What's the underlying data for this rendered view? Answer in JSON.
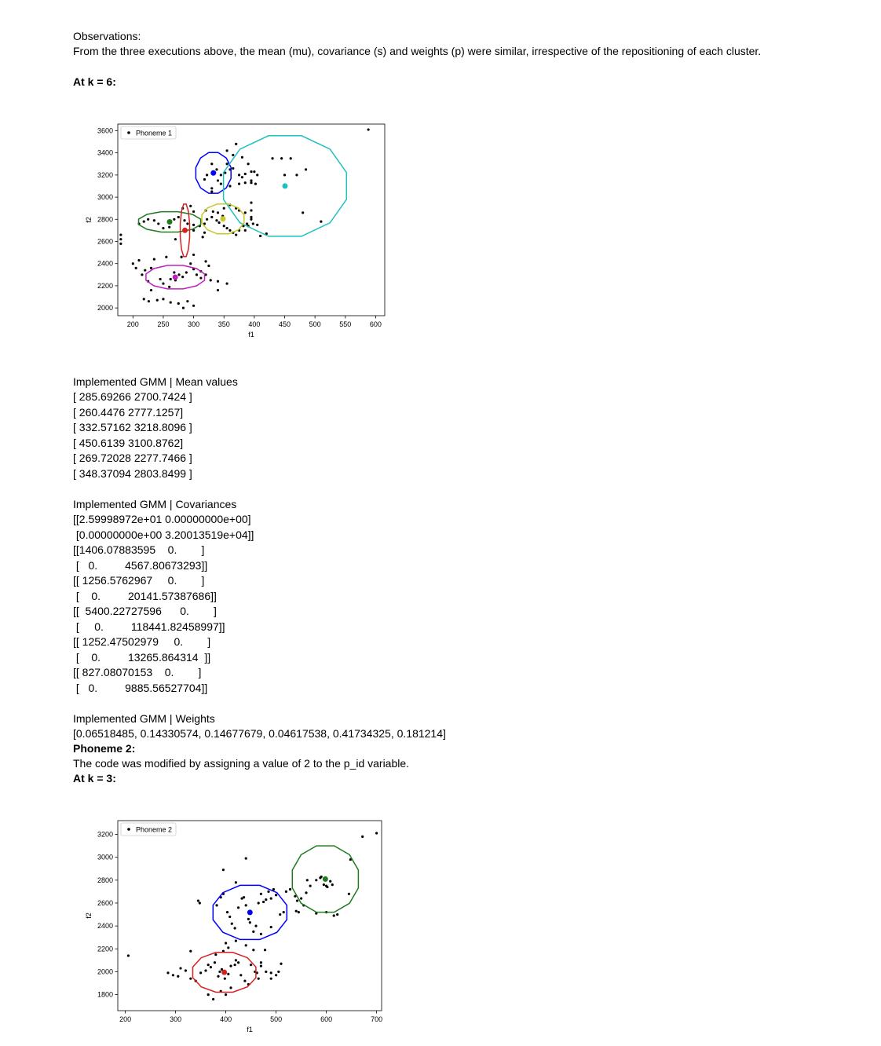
{
  "observations": {
    "heading": "Observations:",
    "text": "From the three executions above, the mean (mu), covariance (s) and weights (p) were similar, irrespective of the repositioning of each cluster."
  },
  "k6_heading": "At k = 6:",
  "chart_data": [
    {
      "type": "scatter",
      "legend": "Phoneme 1",
      "xlabel": "f1",
      "ylabel": "f2",
      "xlim": [
        175,
        615
      ],
      "ylim": [
        1930,
        3660
      ],
      "xticks": [
        200,
        250,
        300,
        350,
        400,
        450,
        500,
        550,
        600
      ],
      "yticks": [
        2000,
        2200,
        2400,
        2600,
        2800,
        3000,
        3200,
        3400,
        3600
      ],
      "clusters": [
        {
          "color": "#0000ff",
          "mean": [
            332.57,
            3218.81
          ],
          "rx": 30,
          "ry": 190
        },
        {
          "color": "#1fbfbf",
          "mean": [
            450.61,
            3100.88
          ],
          "rx": 105,
          "ry": 470
        },
        {
          "color": "#1e7b1e",
          "mean": [
            260.45,
            2777.13
          ],
          "rx": 53,
          "ry": 95
        },
        {
          "color": "#d62020",
          "mean": [
            285.69,
            2700.74
          ],
          "rx": 8,
          "ry": 245
        },
        {
          "color": "#c8c82a",
          "mean": [
            348.37,
            2803.85
          ],
          "rx": 36,
          "ry": 140
        },
        {
          "color": "#c020c0",
          "mean": [
            269.72,
            2277.75
          ],
          "rx": 50,
          "ry": 110
        }
      ],
      "points": [
        [
          180,
          2580
        ],
        [
          180,
          2620
        ],
        [
          180,
          2660
        ],
        [
          200,
          2400
        ],
        [
          205,
          2360
        ],
        [
          210,
          2430
        ],
        [
          215,
          2300
        ],
        [
          220,
          2340
        ],
        [
          225,
          2240
        ],
        [
          230,
          2160
        ],
        [
          218,
          2080
        ],
        [
          226,
          2060
        ],
        [
          240,
          2070
        ],
        [
          250,
          2080
        ],
        [
          262,
          2050
        ],
        [
          275,
          2040
        ],
        [
          290,
          2060
        ],
        [
          300,
          2020
        ],
        [
          283,
          2000
        ],
        [
          262,
          2260
        ],
        [
          270,
          2250
        ],
        [
          282,
          2280
        ],
        [
          276,
          2300
        ],
        [
          268,
          2320
        ],
        [
          288,
          2320
        ],
        [
          300,
          2350
        ],
        [
          312,
          2330
        ],
        [
          320,
          2300
        ],
        [
          328,
          2250
        ],
        [
          340,
          2240
        ],
        [
          355,
          2220
        ],
        [
          312,
          2270
        ],
        [
          305,
          2300
        ],
        [
          295,
          2400
        ],
        [
          320,
          2420
        ],
        [
          325,
          2380
        ],
        [
          300,
          2480
        ],
        [
          280,
          2460
        ],
        [
          255,
          2460
        ],
        [
          235,
          2440
        ],
        [
          230,
          2360
        ],
        [
          245,
          2260
        ],
        [
          250,
          2220
        ],
        [
          260,
          2190
        ],
        [
          210,
          2760
        ],
        [
          218,
          2780
        ],
        [
          225,
          2800
        ],
        [
          235,
          2790
        ],
        [
          242,
          2760
        ],
        [
          250,
          2720
        ],
        [
          260,
          2730
        ],
        [
          268,
          2800
        ],
        [
          275,
          2820
        ],
        [
          285,
          2790
        ],
        [
          290,
          2760
        ],
        [
          300,
          2750
        ],
        [
          310,
          2740
        ],
        [
          318,
          2760
        ],
        [
          322,
          2800
        ],
        [
          330,
          2820
        ],
        [
          338,
          2790
        ],
        [
          342,
          2770
        ],
        [
          350,
          2740
        ],
        [
          355,
          2720
        ],
        [
          360,
          2700
        ],
        [
          365,
          2680
        ],
        [
          370,
          2660
        ],
        [
          375,
          2700
        ],
        [
          382,
          2740
        ],
        [
          388,
          2760
        ],
        [
          395,
          2800
        ],
        [
          395,
          2820
        ],
        [
          398,
          2760
        ],
        [
          405,
          2750
        ],
        [
          282,
          2900
        ],
        [
          295,
          2920
        ],
        [
          300,
          2870
        ],
        [
          320,
          2880
        ],
        [
          332,
          2870
        ],
        [
          340,
          2860
        ],
        [
          348,
          2830
        ],
        [
          350,
          2900
        ],
        [
          360,
          2930
        ],
        [
          370,
          2900
        ],
        [
          375,
          2880
        ],
        [
          385,
          2860
        ],
        [
          395,
          2880
        ],
        [
          395,
          2950
        ],
        [
          390,
          2740
        ],
        [
          385,
          2700
        ],
        [
          315,
          2640
        ],
        [
          270,
          2620
        ],
        [
          300,
          2700
        ],
        [
          318,
          2680
        ],
        [
          340,
          3150
        ],
        [
          345,
          3200
        ],
        [
          352,
          3220
        ],
        [
          360,
          3250
        ],
        [
          365,
          3260
        ],
        [
          375,
          3200
        ],
        [
          380,
          3180
        ],
        [
          385,
          3210
        ],
        [
          395,
          3230
        ],
        [
          400,
          3230
        ],
        [
          405,
          3200
        ],
        [
          402,
          3120
        ],
        [
          395,
          3150
        ],
        [
          385,
          3130
        ],
        [
          375,
          3120
        ],
        [
          360,
          3100
        ],
        [
          345,
          3120
        ],
        [
          330,
          3080
        ],
        [
          338,
          3250
        ],
        [
          355,
          3300
        ],
        [
          365,
          3380
        ],
        [
          380,
          3360
        ],
        [
          390,
          3300
        ],
        [
          322,
          3200
        ],
        [
          318,
          3160
        ],
        [
          330,
          3300
        ],
        [
          430,
          3350
        ],
        [
          445,
          3350
        ],
        [
          460,
          3350
        ],
        [
          450,
          3200
        ],
        [
          485,
          3250
        ],
        [
          470,
          3200
        ],
        [
          395,
          3130
        ],
        [
          330,
          3050
        ],
        [
          410,
          2650
        ],
        [
          420,
          2670
        ],
        [
          480,
          2860
        ],
        [
          510,
          2780
        ],
        [
          588,
          3610
        ],
        [
          370,
          3480
        ],
        [
          355,
          3420
        ],
        [
          340,
          2160
        ]
      ]
    },
    {
      "type": "scatter",
      "legend": "Phoneme 2",
      "xlabel": "f1",
      "ylabel": "f2",
      "xlim": [
        185,
        710
      ],
      "ylim": [
        1660,
        3320
      ],
      "xticks": [
        200,
        300,
        400,
        500,
        600,
        700
      ],
      "yticks": [
        1800,
        2000,
        2200,
        2400,
        2600,
        2800,
        3000,
        3200
      ],
      "clusters": [
        {
          "color": "#d62020",
          "mean": [
            397,
            1995
          ],
          "rx": 65,
          "ry": 180
        },
        {
          "color": "#0000ff",
          "mean": [
            448,
            2518
          ],
          "rx": 76,
          "ry": 245
        },
        {
          "color": "#1e7b1e",
          "mean": [
            598,
            2810
          ],
          "rx": 68,
          "ry": 300
        }
      ],
      "points": [
        [
          206,
          2140
        ],
        [
          285,
          1990
        ],
        [
          295,
          1970
        ],
        [
          305,
          1960
        ],
        [
          310,
          2030
        ],
        [
          320,
          2010
        ],
        [
          330,
          1940
        ],
        [
          340,
          1920
        ],
        [
          350,
          1990
        ],
        [
          360,
          2010
        ],
        [
          365,
          2060
        ],
        [
          370,
          2040
        ],
        [
          378,
          2080
        ],
        [
          385,
          1960
        ],
        [
          388,
          2000
        ],
        [
          392,
          2020
        ],
        [
          398,
          1940
        ],
        [
          405,
          1980
        ],
        [
          410,
          2050
        ],
        [
          418,
          2060
        ],
        [
          425,
          2080
        ],
        [
          430,
          1970
        ],
        [
          438,
          1920
        ],
        [
          445,
          1890
        ],
        [
          450,
          2060
        ],
        [
          458,
          2000
        ],
        [
          462,
          1990
        ],
        [
          465,
          1940
        ],
        [
          470,
          2080
        ],
        [
          330,
          2180
        ],
        [
          365,
          1800
        ],
        [
          375,
          1760
        ],
        [
          390,
          1830
        ],
        [
          400,
          1800
        ],
        [
          410,
          1860
        ],
        [
          380,
          2150
        ],
        [
          395,
          2180
        ],
        [
          420,
          2100
        ],
        [
          470,
          2050
        ],
        [
          480,
          2000
        ],
        [
          490,
          1990
        ],
        [
          490,
          1940
        ],
        [
          500,
          1970
        ],
        [
          510,
          2070
        ],
        [
          505,
          2000
        ],
        [
          345,
          2620
        ],
        [
          348,
          2600
        ],
        [
          382,
          2580
        ],
        [
          390,
          2650
        ],
        [
          395,
          2680
        ],
        [
          403,
          2520
        ],
        [
          408,
          2480
        ],
        [
          412,
          2420
        ],
        [
          418,
          2380
        ],
        [
          425,
          2560
        ],
        [
          432,
          2640
        ],
        [
          436,
          2650
        ],
        [
          440,
          2580
        ],
        [
          445,
          2460
        ],
        [
          448,
          2430
        ],
        [
          455,
          2350
        ],
        [
          460,
          2400
        ],
        [
          465,
          2600
        ],
        [
          470,
          2680
        ],
        [
          475,
          2610
        ],
        [
          480,
          2630
        ],
        [
          485,
          2700
        ],
        [
          490,
          2640
        ],
        [
          495,
          2720
        ],
        [
          500,
          2670
        ],
        [
          508,
          2500
        ],
        [
          515,
          2520
        ],
        [
          520,
          2700
        ],
        [
          528,
          2720
        ],
        [
          538,
          2660
        ],
        [
          542,
          2620
        ],
        [
          545,
          2520
        ],
        [
          550,
          2640
        ],
        [
          555,
          2580
        ],
        [
          560,
          2690
        ],
        [
          562,
          2800
        ],
        [
          568,
          2750
        ],
        [
          580,
          2800
        ],
        [
          588,
          2820
        ],
        [
          595,
          2760
        ],
        [
          600,
          2750
        ],
        [
          602,
          2740
        ],
        [
          608,
          2790
        ],
        [
          622,
          2500
        ],
        [
          645,
          2680
        ],
        [
          648,
          2980
        ],
        [
          672,
          3180
        ],
        [
          700,
          3210
        ],
        [
          395,
          2890
        ],
        [
          420,
          2780
        ],
        [
          440,
          2990
        ],
        [
          470,
          2330
        ],
        [
          490,
          2390
        ],
        [
          400,
          2250
        ],
        [
          420,
          2270
        ],
        [
          440,
          2230
        ],
        [
          455,
          2190
        ],
        [
          405,
          2210
        ],
        [
          478,
          2190
        ],
        [
          540,
          2530
        ],
        [
          600,
          2520
        ],
        [
          615,
          2490
        ],
        [
          580,
          2510
        ],
        [
          600,
          2800
        ],
        [
          612,
          2760
        ],
        [
          590,
          2830
        ]
      ]
    }
  ],
  "gmm_means": {
    "heading": "Implemented GMM | Mean values",
    "lines": [
      "[ 285.69266 2700.7424 ]",
      "[ 260.4476 2777.1257]",
      "[ 332.57162 3218.8096 ]",
      "[ 450.6139 3100.8762]",
      "[ 269.72028 2277.7466 ]",
      "[ 348.37094 2803.8499 ]"
    ]
  },
  "gmm_covariances": {
    "heading": "Implemented GMM | Covariances",
    "lines": [
      "[[2.59998972e+01 0.00000000e+00]",
      " [0.00000000e+00 3.20013519e+04]]",
      "[[1406.07883595    0.        ]",
      " [   0.         4567.80673293]]",
      "[[ 1256.5762967     0.        ]",
      " [    0.         20141.57387686]]",
      "[[  5400.22727596      0.        ]",
      " [     0.         118441.82458997]]",
      "[[ 1252.47502979     0.        ]",
      " [    0.         13265.864314  ]]",
      "[[ 827.08070153    0.        ]",
      " [   0.         9885.56527704]]"
    ]
  },
  "gmm_weights": {
    "heading": "Implemented GMM | Weights",
    "line": "[0.06518485, 0.14330574, 0.14677679, 0.04617538, 0.41734325, 0.181214]"
  },
  "phoneme2": {
    "heading": "Phoneme 2:",
    "text": "The code was modified by assigning a value of 2 to the p_id variable.",
    "k_heading": "At k = 3:"
  }
}
